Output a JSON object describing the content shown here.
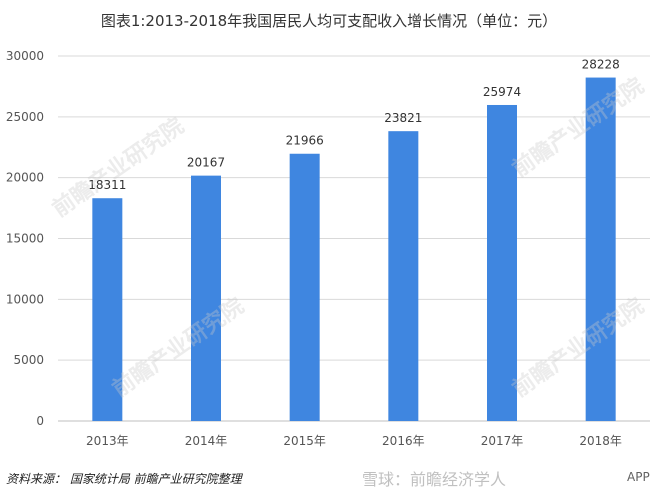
{
  "title": "图表1:2013-2018年我国居民人均可支配收入增长情况（单位：元）",
  "source": "资料来源： 国家统计局 前瞻产业研究院整理",
  "watermark_xueqiu": "雪球：前瞻经济学人",
  "watermark_app": "APP",
  "watermark_brand": "前瞻产业研究院",
  "colors": {
    "bar": "#3f86e0",
    "grid": "#d9d9d9",
    "axis_text": "#555555"
  },
  "chart_data": {
    "type": "bar",
    "categories": [
      "2013年",
      "2014年",
      "2015年",
      "2016年",
      "2017年",
      "2018年"
    ],
    "values": [
      18311,
      20167,
      21966,
      23821,
      25974,
      28228
    ],
    "ylim": [
      0,
      30000
    ],
    "yticks": [
      0,
      5000,
      10000,
      15000,
      20000,
      25000,
      30000
    ],
    "grid": true,
    "data_labels": true
  }
}
